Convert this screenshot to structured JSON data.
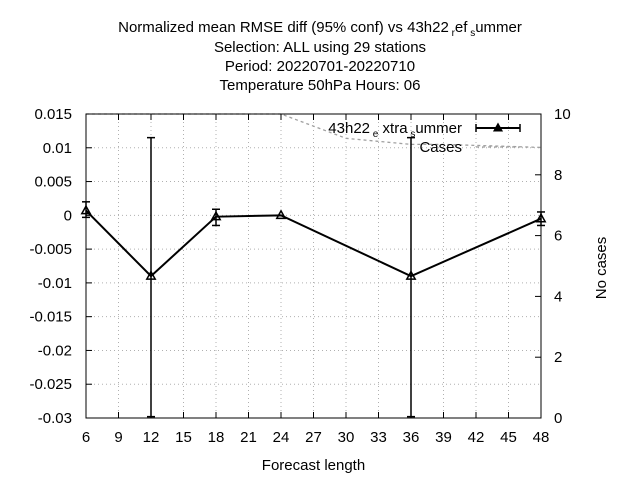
{
  "chart_data": {
    "type": "line",
    "title_lines": [
      "Normalized mean RMSE diff (95% conf) vs 43h22",
      "Selection: ALL using    29 stations",
      "Period: 20220701-20220710",
      "Temperature 50hPa   Hours:  06"
    ],
    "title_ref_parts": [
      "r",
      "ef",
      "s",
      "ummer"
    ],
    "xlabel": "Forecast length",
    "ylabel": "",
    "y2label": "No cases",
    "xlim": [
      6,
      48
    ],
    "ylim": [
      -0.03,
      0.015
    ],
    "y2lim": [
      0,
      10
    ],
    "xticks": [
      6,
      9,
      12,
      15,
      18,
      21,
      24,
      27,
      30,
      33,
      36,
      39,
      42,
      45,
      48
    ],
    "yticks": [
      0.015,
      0.01,
      0.005,
      0,
      -0.005,
      -0.01,
      -0.015,
      -0.02,
      -0.025,
      -0.03
    ],
    "ytick_labels": [
      "0.015",
      "0.01",
      "0.005",
      "0",
      "-0.005",
      "-0.01",
      "-0.015",
      "-0.02",
      "-0.025",
      "-0.03"
    ],
    "y2ticks": [
      0,
      2,
      4,
      6,
      8,
      10
    ],
    "grid": true,
    "legend_position": "top-right",
    "series": [
      {
        "name_parts": [
          "43h22",
          "e",
          "xtra",
          "s",
          "ummer"
        ],
        "type": "line-errorbar",
        "color": "#000000",
        "x": [
          6,
          12,
          18,
          24,
          36,
          48
        ],
        "y": [
          0.0007,
          -0.009,
          -0.0002,
          0.0,
          -0.009,
          -0.0005
        ],
        "err_low": [
          -0.0003,
          -0.0298,
          -0.0015,
          0.0,
          -0.0298,
          -0.0015
        ],
        "err_high": [
          0.002,
          0.0115,
          0.0009,
          0.0,
          0.0115,
          0.0005
        ]
      },
      {
        "name": "Cases",
        "type": "line",
        "axis": "y2",
        "color": "#a0a0a0",
        "x": [
          6,
          24,
          30,
          36,
          39,
          48
        ],
        "y": [
          10,
          10,
          9.2,
          9,
          9,
          8.9
        ]
      }
    ]
  }
}
